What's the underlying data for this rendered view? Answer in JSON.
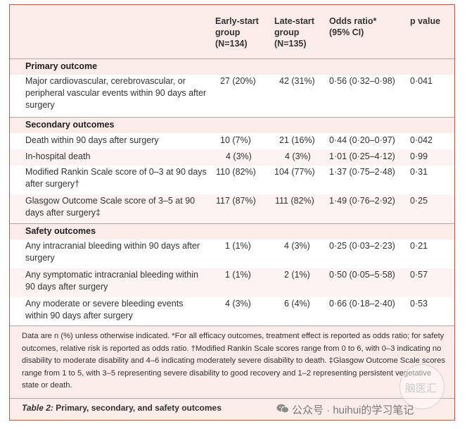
{
  "header": {
    "early": [
      "Early-start",
      "group",
      "(N=134)"
    ],
    "late": [
      "Late-start",
      "group",
      "(N=135)"
    ],
    "odds": [
      "Odds ratio*",
      "(95% CI)"
    ],
    "p": "p value"
  },
  "sections": [
    {
      "title": "Primary outcome",
      "rows": [
        {
          "label": "Major cardiovascular, cerebrovascular, or peripheral vascular events within 90 days after surgery",
          "early": "27 (20%)",
          "late": "42 (31%)",
          "odds": "0·56 (0·32–0·98)",
          "p": "0·041"
        }
      ]
    },
    {
      "title": "Secondary outcomes",
      "rows": [
        {
          "label": "Death within 90 days after surgery",
          "early": "10 (7%)",
          "late": "21 (16%)",
          "odds": "0·44 (0·20–0·97)",
          "p": "0·042"
        },
        {
          "label": "In-hospital death",
          "early": "4 (3%)",
          "late": "4 (3%)",
          "odds": "1·01 (0·25–4·12)",
          "p": "0·99"
        },
        {
          "label": "Modified Rankin Scale score of 0–3 at 90 days after surgery†",
          "early": "110 (82%)",
          "late": "104 (77%)",
          "odds": "1·37 (0·75–2·48)",
          "p": "0·31"
        },
        {
          "label": "Glasgow Outcome Scale score of 3–5 at 90 days after surgery‡",
          "early": "117 (87%)",
          "late": "111 (82%)",
          "odds": "1·49 (0·76–2·92)",
          "p": "0·25"
        }
      ]
    },
    {
      "title": "Safety outcomes",
      "rows": [
        {
          "label": "Any intracranial bleeding within 90 days after surgery",
          "early": "1 (1%)",
          "late": "4 (3%)",
          "odds": "0·25 (0·03–2·23)",
          "p": "0·21"
        },
        {
          "label": "Any symptomatic intracranial bleeding within 90 days after surgery",
          "early": "1 (1%)",
          "late": "2 (1%)",
          "odds": "0·50 (0·05–5·58)",
          "p": "0·57"
        },
        {
          "label": "Any moderate or severe bleeding events within 90 days after surgery",
          "early": "4 (3%)",
          "late": "6 (4%)",
          "odds": "0·66 (0·18–2·40)",
          "p": "0·53"
        }
      ]
    }
  ],
  "footnote": "Data are n (%) unless otherwise indicated. *For all efficacy outcomes, treatment effect is reported as odds ratio; for safety outcomes, relative risk is reported as odds ratio. †Modified Rankin Scale scores range from 0 to 6, with 0–3 indicating no disability to moderate disability and 4–6 indicating moderately severe disability to death. ‡Glasgow Outcome Scale scores range from 1 to 5, with 3–5 representing severe disability to good recovery and 1–2 representing persistent vegetative state or death.",
  "caption": {
    "label": "Table 2:",
    "text": " Primary, secondary, and safety outcomes"
  },
  "watermark": {
    "text": "公众号 · huihui的学习笔记",
    "circle_text": "脑医汇",
    "icon": "wechat-icon"
  }
}
